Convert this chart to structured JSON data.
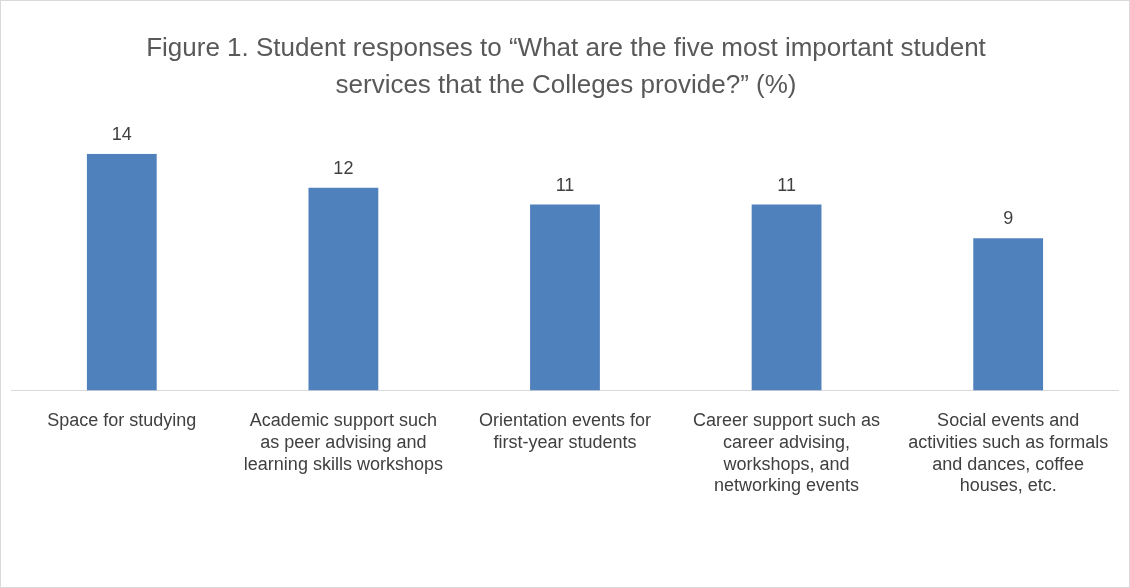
{
  "chart_data": {
    "type": "bar",
    "title": "Figure 1. Student responses to “What are the five most important student services that the Colleges provide?” (%)",
    "categories": [
      "Space for studying",
      "Academic support such as peer advising and learning skills workshops",
      "Orientation events for first-year students",
      "Career support such as career advising, workshops, and networking events",
      "Social events and activities such as formals and dances, coffee houses, etc."
    ],
    "values": [
      14,
      12,
      11,
      11,
      9
    ],
    "color": "#4f81bd",
    "data_labels": true
  }
}
